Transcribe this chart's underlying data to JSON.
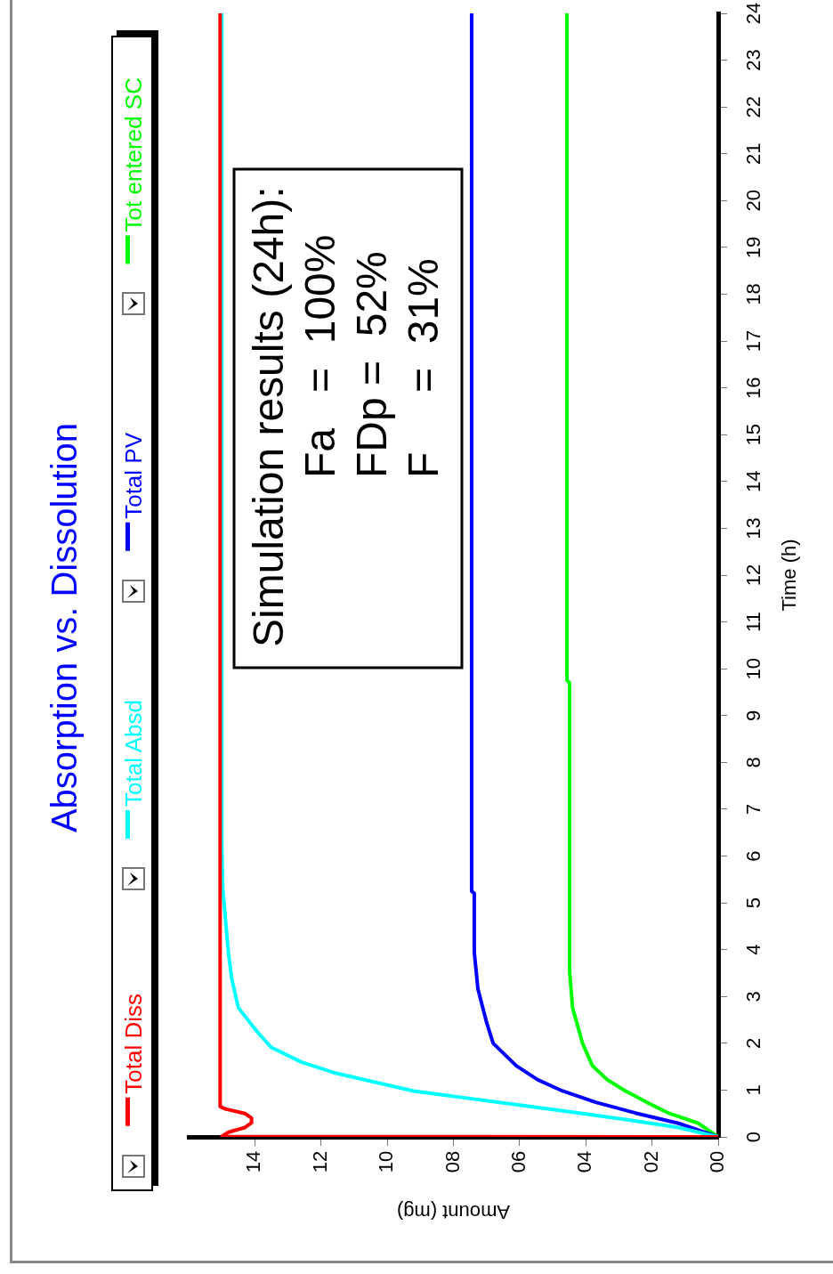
{
  "chart_data": {
    "type": "line",
    "title": "Absorption vs. Dissolution",
    "xlabel": "Amount (mg)",
    "ylabel": "Time (h)",
    "annotations": [
      "Simulation results (24h):",
      "Fa   =  100%",
      "FDp =  52%",
      "F     =  31%"
    ],
    "legend": "left",
    "marker": "none",
    "line_style": "solid",
    "xlim": [
      16,
      0
    ],
    "xticks": [
      {
        "value": 14,
        "label": "14"
      },
      {
        "value": 12,
        "label": "12"
      },
      {
        "value": 10,
        "label": "10"
      },
      {
        "value": 8,
        "label": "08"
      },
      {
        "value": 6,
        "label": "06"
      },
      {
        "value": 4,
        "label": "04"
      },
      {
        "value": 2,
        "label": "02"
      },
      {
        "value": 0,
        "label": "00"
      }
    ],
    "ylim": [
      0,
      24
    ],
    "yticks": [
      0,
      1,
      2,
      3,
      4,
      5,
      6,
      7,
      8,
      9,
      10,
      11,
      12,
      13,
      14,
      15,
      16,
      17,
      18,
      19,
      20,
      21,
      22,
      23,
      24
    ],
    "series": [
      {
        "name": "Total Diss",
        "color": "#ff0000",
        "x": [
          0,
          15,
          14.8,
          14.3,
          14.1,
          14.1,
          14.3,
          14.9,
          15.05,
          15.05
        ],
        "values": [
          0,
          0.01,
          0.1,
          0.2,
          0.3,
          0.4,
          0.5,
          0.6,
          0.65,
          24
        ]
      },
      {
        "name": "Total Absd",
        "color": "#00ffff",
        "x": [
          0,
          1.2,
          2.7,
          4.2,
          5.9,
          7.5,
          9.2,
          10.2,
          11.6,
          12.6,
          13.5,
          13.9,
          14.5,
          14.7,
          14.8,
          14.97,
          15,
          15
        ],
        "values": [
          0,
          0.2,
          0.36,
          0.51,
          0.67,
          0.82,
          0.98,
          1.14,
          1.37,
          1.6,
          1.91,
          2.22,
          2.76,
          3.38,
          3.94,
          5.3,
          6.3,
          24
        ]
      },
      {
        "name": "Total PV",
        "color": "#0000ff",
        "x": [
          0,
          1.2,
          2.5,
          3.7,
          4.7,
          5.45,
          6.1,
          6.8,
          7,
          7.26,
          7.37,
          7.37,
          7.45,
          7.45
        ],
        "values": [
          0,
          0.29,
          0.51,
          0.74,
          0.98,
          1.22,
          1.52,
          2.0,
          2.45,
          3.16,
          3.94,
          5.2,
          5.25,
          24
        ]
      },
      {
        "name": "Tot entered SC",
        "color": "#00ff00",
        "x": [
          0,
          0.6,
          1.5,
          2.16,
          2.8,
          3.35,
          3.8,
          4.1,
          4.4,
          4.49,
          4.49,
          4.57,
          4.57
        ],
        "values": [
          0,
          0.29,
          0.51,
          0.74,
          0.98,
          1.22,
          1.52,
          2.0,
          2.76,
          3.54,
          9.7,
          9.75,
          24
        ]
      }
    ]
  }
}
